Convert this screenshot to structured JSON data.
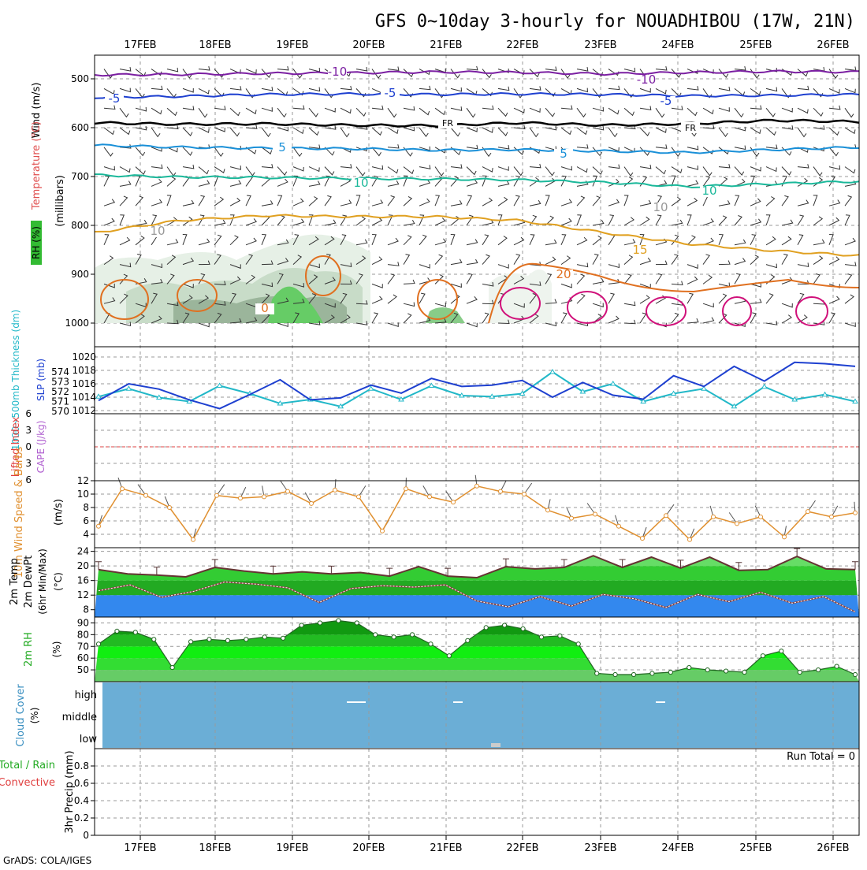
{
  "title": "GFS 0~10day 3-hourly for NOUADHIBOU (17W, 21N)",
  "footer": "GrADS: COLA/IGES",
  "dates": [
    "17FEB",
    "18FEB",
    "19FEB",
    "20FEB",
    "21FEB",
    "22FEB",
    "23FEB",
    "24FEB",
    "25FEB",
    "26FEB"
  ],
  "colors": {
    "t500": "#7b1fa2",
    "t550": "#1e40d0",
    "freezing": "#000000",
    "t650": "#1a90d8",
    "t700": "#1ab89a",
    "t800": "#e0a020",
    "t900": "#e07020",
    "t950": "#d0107a",
    "slp": "#1e40d0",
    "thickness": "#22b8c8",
    "wind10m": "#e09030",
    "cloud": "#6baed6",
    "rh_dark": "#22aa22"
  },
  "labels": {
    "panel1": {
      "wind": "Wind (m/s)",
      "temp": "Temperature (°C)",
      "rh": "RH (%)",
      "mb": "(millibars)"
    },
    "panel2": {
      "thick": "1000~500mb Thickness (dm)",
      "slp": "SLP (mb)"
    },
    "panel3": {
      "li": "Lifted Index",
      "cape": "CAPE (J/kg)"
    },
    "panel4": {
      "wind": "10m Wind Speed & Barbs",
      "unit": "(m/s)"
    },
    "panel5": {
      "temp": "2m Temp",
      "dew": "2m DewPt",
      "minmax": "(6hr Min/Max)",
      "unit": "(°C)"
    },
    "panel6": {
      "rh": "2m RH",
      "unit": "(%)"
    },
    "panel7": {
      "cloud": "Cloud Cover",
      "unit": "(%)",
      "levels": [
        "high",
        "middle",
        "low"
      ]
    },
    "panel8": {
      "precip": "3hr Precip (mm)",
      "total_rain": "Total / Rain",
      "convective": "Convective",
      "run_total": "Run Total = 0"
    }
  },
  "chart_data": [
    {
      "type": "line",
      "title": "Wind / Temperature / RH profile",
      "ylabel": "millibars",
      "yticks": [
        500,
        600,
        700,
        800,
        900,
        1000
      ],
      "ylim": [
        1000,
        450
      ],
      "contour_labels": [
        "-10",
        "-10",
        "-5",
        "-5",
        "-5",
        "FR",
        "FR",
        "5",
        "5",
        "10",
        "10",
        "10",
        "10",
        "15",
        "20",
        "0"
      ],
      "series": [
        {
          "name": "-10",
          "values": [
            492,
            491,
            489,
            488,
            486,
            487,
            490,
            487,
            485,
            486
          ]
        },
        {
          "name": "-5",
          "values": [
            538,
            536,
            532,
            531,
            532,
            531,
            532,
            535,
            534,
            532
          ]
        },
        {
          "name": "FR",
          "values": [
            590,
            593,
            592,
            595,
            596,
            590,
            595,
            592,
            585,
            588
          ]
        },
        {
          "name": "5",
          "values": [
            636,
            640,
            642,
            643,
            646,
            645,
            648,
            651,
            645,
            640
          ]
        },
        {
          "name": "10",
          "values": [
            697,
            701,
            702,
            704,
            705,
            707,
            712,
            721,
            715,
            710
          ]
        },
        {
          "name": "15",
          "values": [
            815,
            790,
            780,
            782,
            782,
            790,
            815,
            838,
            852,
            862
          ]
        }
      ]
    },
    {
      "type": "line",
      "title": "1000~500mb Thickness / SLP",
      "yticks_left": [
        570,
        571,
        572,
        573,
        574
      ],
      "yticks_right": [
        1012,
        1014,
        1016,
        1018,
        1020
      ],
      "series": [
        {
          "name": "Thickness (dm)",
          "values": [
            571.5,
            572.3,
            571.4,
            571.0,
            572.6,
            571.8,
            570.8,
            571.2,
            570.5,
            572.3,
            571.2,
            572.6,
            571.6,
            571.5,
            571.8,
            574.0,
            572.0,
            572.8,
            571.0,
            571.8,
            572.3,
            570.5,
            572.5,
            571.2,
            571.7,
            571.0
          ]
        },
        {
          "name": "SLP (mb)",
          "values": [
            1013.5,
            1016.0,
            1015.2,
            1013.6,
            1012.3,
            1014.4,
            1016.6,
            1013.6,
            1013.9,
            1015.8,
            1014.6,
            1016.8,
            1015.6,
            1015.8,
            1016.5,
            1014.0,
            1016.2,
            1014.3,
            1013.7,
            1017.2,
            1015.6,
            1018.6,
            1016.4,
            1019.2,
            1019.0,
            1018.6
          ]
        }
      ]
    },
    {
      "type": "line",
      "title": "Lifted Index / CAPE",
      "yticks": [
        -6,
        -3,
        0,
        3,
        6
      ],
      "series": []
    },
    {
      "type": "line",
      "title": "10m Wind Speed",
      "ylabel": "(m/s)",
      "yticks": [
        4,
        6,
        8,
        10,
        12
      ],
      "ylim": [
        2,
        12
      ],
      "series": [
        {
          "name": "Wind speed",
          "values": [
            5.2,
            10.8,
            9.8,
            8.0,
            3.2,
            9.8,
            9.4,
            9.6,
            10.4,
            8.6,
            10.6,
            9.6,
            4.5,
            10.8,
            9.6,
            8.8,
            11.2,
            10.4,
            10.0,
            7.6,
            6.4,
            7.0,
            5.2,
            3.4,
            6.8,
            3.2,
            6.6,
            5.6,
            6.6,
            3.6,
            7.4,
            6.6,
            7.2
          ]
        }
      ]
    },
    {
      "type": "area",
      "title": "2m Temp / DewPt",
      "ylabel": "(°C)",
      "yticks": [
        8,
        12,
        16,
        20,
        24
      ],
      "ylim": [
        6,
        25
      ],
      "series": [
        {
          "name": "2m Temp",
          "values": [
            19.0,
            17.8,
            17.5,
            17.0,
            19.6,
            18.6,
            17.8,
            18.4,
            17.8,
            18.2,
            17.2,
            19.8,
            17.2,
            16.8,
            19.8,
            19.2,
            19.6,
            22.8,
            19.6,
            22.4,
            19.4,
            22.4,
            18.8,
            19.0,
            22.6,
            19.2,
            19.0
          ]
        },
        {
          "name": "2m DewPt",
          "values": [
            13.2,
            14.8,
            11.4,
            13.0,
            15.6,
            15.0,
            14.0,
            10.0,
            13.8,
            14.6,
            14.2,
            14.8,
            10.4,
            8.8,
            11.6,
            9.0,
            12.2,
            11.0,
            8.6,
            12.2,
            10.2,
            12.8,
            9.8,
            11.6,
            7.4
          ]
        }
      ]
    },
    {
      "type": "area",
      "title": "2m RH",
      "ylabel": "(%)",
      "yticks": [
        50,
        60,
        70,
        80,
        90
      ],
      "ylim": [
        40,
        95
      ],
      "series": [
        {
          "name": "2m RH",
          "values": [
            72,
            83,
            82,
            76,
            52,
            74,
            76,
            75,
            76,
            78,
            77,
            88,
            90,
            92,
            90,
            80,
            78,
            80,
            72,
            62,
            75,
            86,
            88,
            85,
            78,
            79,
            72,
            47,
            46,
            46,
            47,
            48,
            52,
            50,
            49,
            48,
            62,
            66,
            48,
            50,
            53,
            46
          ]
        }
      ]
    },
    {
      "type": "bar",
      "title": "Cloud Cover",
      "categories": [
        "high",
        "middle",
        "low"
      ],
      "values": [
        4,
        0,
        1
      ]
    },
    {
      "type": "bar",
      "title": "3hr Precip",
      "ylabel": "3hr Precip (mm)",
      "yticks": [
        0,
        0.2,
        0.4,
        0.6,
        0.8
      ],
      "ylim": [
        0,
        1
      ],
      "values": [
        0,
        0,
        0,
        0,
        0,
        0,
        0,
        0,
        0,
        0
      ]
    }
  ]
}
